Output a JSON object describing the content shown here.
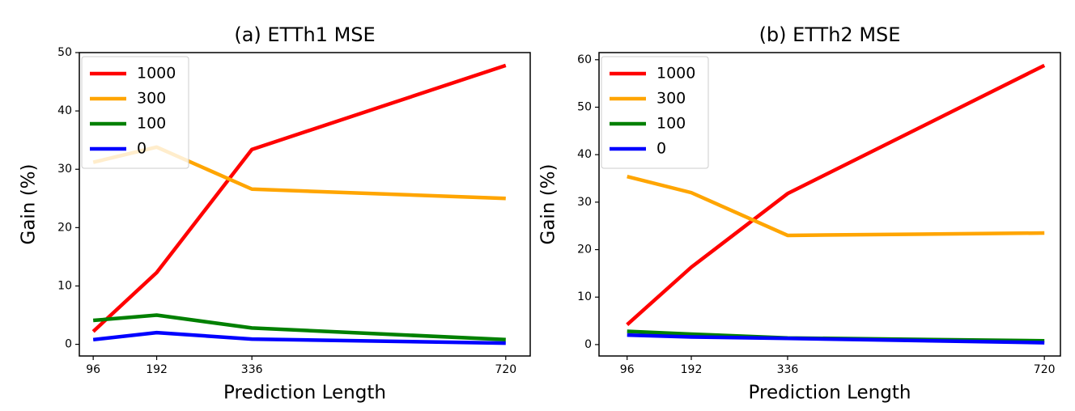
{
  "chart_data": [
    {
      "type": "line",
      "title": "(a) ETTh1 MSE",
      "x_label": "Prediction Length",
      "y_label": "Gain (%)",
      "x": [
        96,
        192,
        336,
        720
      ],
      "xlim": [
        75,
        757
      ],
      "xticks": [
        96,
        192,
        336,
        720
      ],
      "ylim": [
        -2,
        50
      ],
      "yticks": [
        0,
        10,
        20,
        30,
        40,
        50
      ],
      "legend": "upper left",
      "series": [
        {
          "name": "1000",
          "color": "#ff0000",
          "values": [
            2.2,
            12.3,
            33.4,
            47.8
          ]
        },
        {
          "name": "300",
          "color": "#ffa500",
          "values": [
            31.2,
            33.8,
            26.6,
            25.0
          ]
        },
        {
          "name": "100",
          "color": "#008000",
          "values": [
            4.1,
            5.0,
            2.8,
            0.8
          ]
        },
        {
          "name": "0",
          "color": "#0000ff",
          "values": [
            0.8,
            2.0,
            0.9,
            0.2
          ]
        }
      ]
    },
    {
      "type": "line",
      "title": "(b) ETTh2 MSE",
      "x_label": "Prediction Length",
      "y_label": "Gain (%)",
      "x": [
        96,
        192,
        336,
        720
      ],
      "xlim": [
        54,
        744
      ],
      "xticks": [
        96,
        192,
        336,
        720
      ],
      "ylim": [
        -2.4,
        61.5
      ],
      "yticks": [
        0,
        10,
        20,
        30,
        40,
        50,
        60
      ],
      "legend": "upper left",
      "series": [
        {
          "name": "1000",
          "color": "#ff0000",
          "values": [
            4.2,
            16.3,
            31.8,
            58.8
          ]
        },
        {
          "name": "300",
          "color": "#ffa500",
          "values": [
            35.4,
            32.0,
            23.0,
            23.5
          ]
        },
        {
          "name": "100",
          "color": "#008000",
          "values": [
            2.8,
            2.2,
            1.4,
            0.8
          ]
        },
        {
          "name": "0",
          "color": "#0000ff",
          "values": [
            2.0,
            1.6,
            1.3,
            0.4
          ]
        }
      ]
    }
  ]
}
